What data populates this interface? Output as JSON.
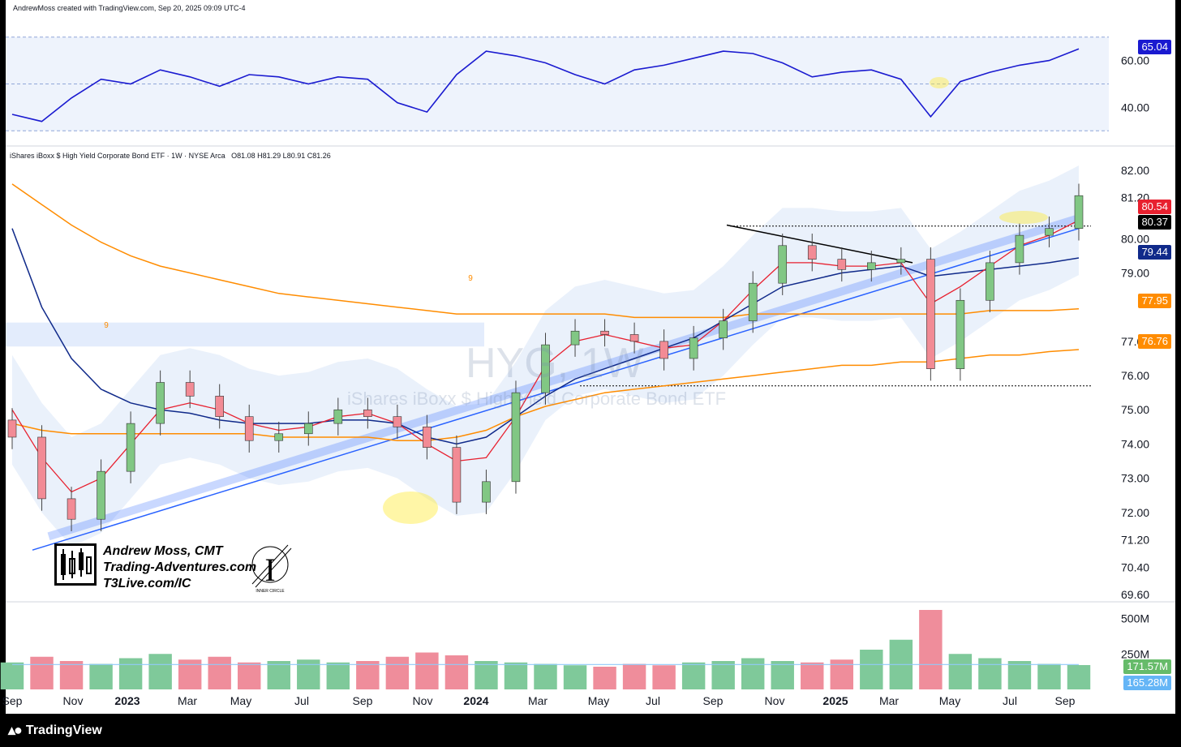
{
  "header": {
    "credit": "AndrewMoss created with TradingView.com, Sep 20, 2025 09:09 UTC-4"
  },
  "legend": {
    "symbol_line": "iShares iBoxx $ High Yield Corporate Bond ETF · 1W · NYSE Arca",
    "ohlc": "O81.08  H81.29  L80.91  C81.26"
  },
  "watermark": {
    "ticker": "HYG, 1W",
    "name": "iShares iBoxx $ High Yield Corporate Bond ETF"
  },
  "signature": {
    "line1": "Andrew Moss, CMT",
    "line2": "Trading-Adventures.com",
    "line3": "T3Live.com/IC",
    "logo_caption": "INNER CIRCLE"
  },
  "footer": {
    "brand": "TradingView"
  },
  "colors": {
    "up": "#81c784",
    "down": "#f28b95",
    "rsi": "#1a1ad0",
    "sma_fast": "#e8202f",
    "sma_mid": "#102a8a",
    "sma_slow": "#ff8c00",
    "trend": "#2962ff"
  },
  "price_tags": [
    {
      "label": "80.54",
      "color": "#e8202f"
    },
    {
      "label": "80.37",
      "color": "#000000"
    },
    {
      "label": "79.44",
      "color": "#102a8a"
    },
    {
      "label": "77.95",
      "color": "#ff8c00"
    },
    {
      "label": "76.76",
      "color": "#ff8c00"
    }
  ],
  "rsi_tag": {
    "label": "65.04"
  },
  "volume_tags": [
    {
      "label": "171.57M",
      "color": "#66bb6a"
    },
    {
      "label": "165.28M",
      "color": "#64b5f6"
    }
  ],
  "chart_data": [
    {
      "type": "line",
      "title": "RSI",
      "y_ticks": [
        "60.00",
        "40.00"
      ],
      "levels": [
        70,
        50,
        30
      ],
      "ylim": [
        28,
        72
      ],
      "x": [
        "Sep 2022",
        "Oct 2022",
        "Nov 2022",
        "Dec 2022",
        "Jan 2023",
        "Feb 2023",
        "Mar 2023",
        "Apr 2023",
        "May 2023",
        "Jun 2023",
        "Jul 2023",
        "Aug 2023",
        "Sep 2023",
        "Oct 2023",
        "Nov 2023",
        "Dec 2023",
        "Jan 2024",
        "Feb 2024",
        "Mar 2024",
        "Apr 2024",
        "May 2024",
        "Jun 2024",
        "Jul 2024",
        "Aug 2024",
        "Sep 2024",
        "Oct 2024",
        "Nov 2024",
        "Dec 2024",
        "Jan 2025",
        "Feb 2025",
        "Mar 2025",
        "Apr 2025",
        "May 2025",
        "Jun 2025",
        "Jul 2025",
        "Aug 2025",
        "Sep 2025"
      ],
      "values": [
        37,
        34,
        44,
        52,
        50,
        56,
        53,
        49,
        54,
        53,
        50,
        53,
        52,
        42,
        38,
        54,
        64,
        62,
        59,
        54,
        50,
        56,
        58,
        61,
        64,
        63,
        59,
        53,
        55,
        56,
        52,
        36,
        51,
        55,
        58,
        60,
        65
      ]
    },
    {
      "type": "candlestick",
      "title": "iShares iBoxx $ High Yield Corporate Bond ETF · 1W · NYSE Arca",
      "y_ticks": [
        "82.00",
        "81.20",
        "80.00",
        "79.00",
        "77.00",
        "76.00",
        "75.00",
        "74.00",
        "73.00",
        "72.00",
        "71.20",
        "70.40",
        "69.60"
      ],
      "ylim": [
        69.6,
        82.0
      ],
      "x_ticks": [
        "Sep",
        "Nov",
        "2023",
        "Mar",
        "May",
        "Jul",
        "Sep",
        "Nov",
        "2024",
        "Mar",
        "May",
        "Jul",
        "Sep",
        "Nov",
        "2025",
        "Mar",
        "May",
        "Jul",
        "Sep"
      ],
      "closes": [
        74.2,
        72.4,
        71.8,
        73.2,
        74.6,
        75.8,
        75.4,
        74.8,
        74.1,
        74.3,
        74.6,
        75.0,
        74.8,
        74.5,
        73.9,
        72.3,
        72.9,
        75.5,
        76.9,
        77.3,
        77.2,
        77.0,
        76.5,
        77.1,
        77.6,
        78.7,
        79.8,
        79.4,
        79.1,
        79.3,
        79.4,
        76.2,
        78.2,
        79.3,
        80.1,
        80.3,
        81.26
      ],
      "sma_fast": [
        75.0,
        73.6,
        72.6,
        73.0,
        74.0,
        75.0,
        75.2,
        75.0,
        74.6,
        74.4,
        74.5,
        74.8,
        74.9,
        74.6,
        74.0,
        73.5,
        73.6,
        74.8,
        76.3,
        77.0,
        77.2,
        77.0,
        76.8,
        76.9,
        77.6,
        78.5,
        79.3,
        79.3,
        79.2,
        79.2,
        79.3,
        78.1,
        78.6,
        79.2,
        79.8,
        80.1,
        80.54
      ],
      "sma_mid": [
        80.3,
        78.0,
        76.5,
        75.6,
        75.2,
        75.0,
        74.9,
        74.7,
        74.6,
        74.6,
        74.6,
        74.7,
        74.7,
        74.6,
        74.2,
        74.0,
        74.2,
        74.8,
        75.4,
        75.9,
        76.2,
        76.5,
        76.8,
        77.1,
        77.6,
        78.1,
        78.6,
        78.8,
        79.0,
        79.1,
        79.2,
        78.9,
        79.0,
        79.1,
        79.2,
        79.3,
        79.44
      ],
      "sma_slow": [
        81.6,
        81.0,
        80.4,
        79.9,
        79.5,
        79.2,
        79.0,
        78.8,
        78.6,
        78.4,
        78.3,
        78.2,
        78.1,
        78.0,
        77.9,
        77.8,
        77.8,
        77.8,
        77.8,
        77.8,
        77.8,
        77.7,
        77.7,
        77.7,
        77.7,
        77.8,
        77.8,
        77.8,
        77.8,
        77.8,
        77.8,
        77.8,
        77.8,
        77.9,
        77.9,
        77.9,
        77.95
      ],
      "sma_200": [
        74.6,
        74.4,
        74.3,
        74.3,
        74.3,
        74.3,
        74.3,
        74.3,
        74.3,
        74.2,
        74.2,
        74.2,
        74.2,
        74.1,
        74.1,
        74.2,
        74.4,
        74.8,
        75.1,
        75.3,
        75.5,
        75.6,
        75.7,
        75.8,
        75.9,
        76.0,
        76.1,
        76.2,
        76.3,
        76.3,
        76.4,
        76.4,
        76.5,
        76.6,
        76.6,
        76.7,
        76.76
      ],
      "horizontal_levels": [
        80.37,
        75.7
      ],
      "annotations": [
        "9",
        "9"
      ]
    },
    {
      "type": "bar",
      "title": "Volume",
      "y_ticks": [
        "500M",
        "250M"
      ],
      "ylim": [
        0,
        560
      ],
      "values": [
        190,
        230,
        200,
        180,
        220,
        250,
        210,
        230,
        190,
        200,
        210,
        190,
        200,
        230,
        260,
        240,
        200,
        190,
        180,
        170,
        160,
        180,
        170,
        190,
        200,
        220,
        200,
        190,
        210,
        280,
        350,
        560,
        250,
        220,
        200,
        180,
        171.57
      ],
      "ma_value": 165.28
    }
  ]
}
